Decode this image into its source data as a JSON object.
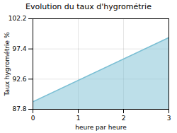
{
  "chart_data": {
    "type": "area",
    "title": "Evolution du taux d'hygrométrie",
    "xlabel": "heure par heure",
    "ylabel": "Taux hygrométrie %",
    "x": [
      0,
      3
    ],
    "values": [
      89.0,
      99.2
    ],
    "color": "#7bbfd4",
    "xlim": [
      0,
      3
    ],
    "xticks": [
      0,
      1,
      2,
      3
    ],
    "ylim": [
      87.8,
      102.2
    ],
    "yticks": [
      87.8,
      92.6,
      97.4,
      102.2
    ],
    "grid": true
  }
}
